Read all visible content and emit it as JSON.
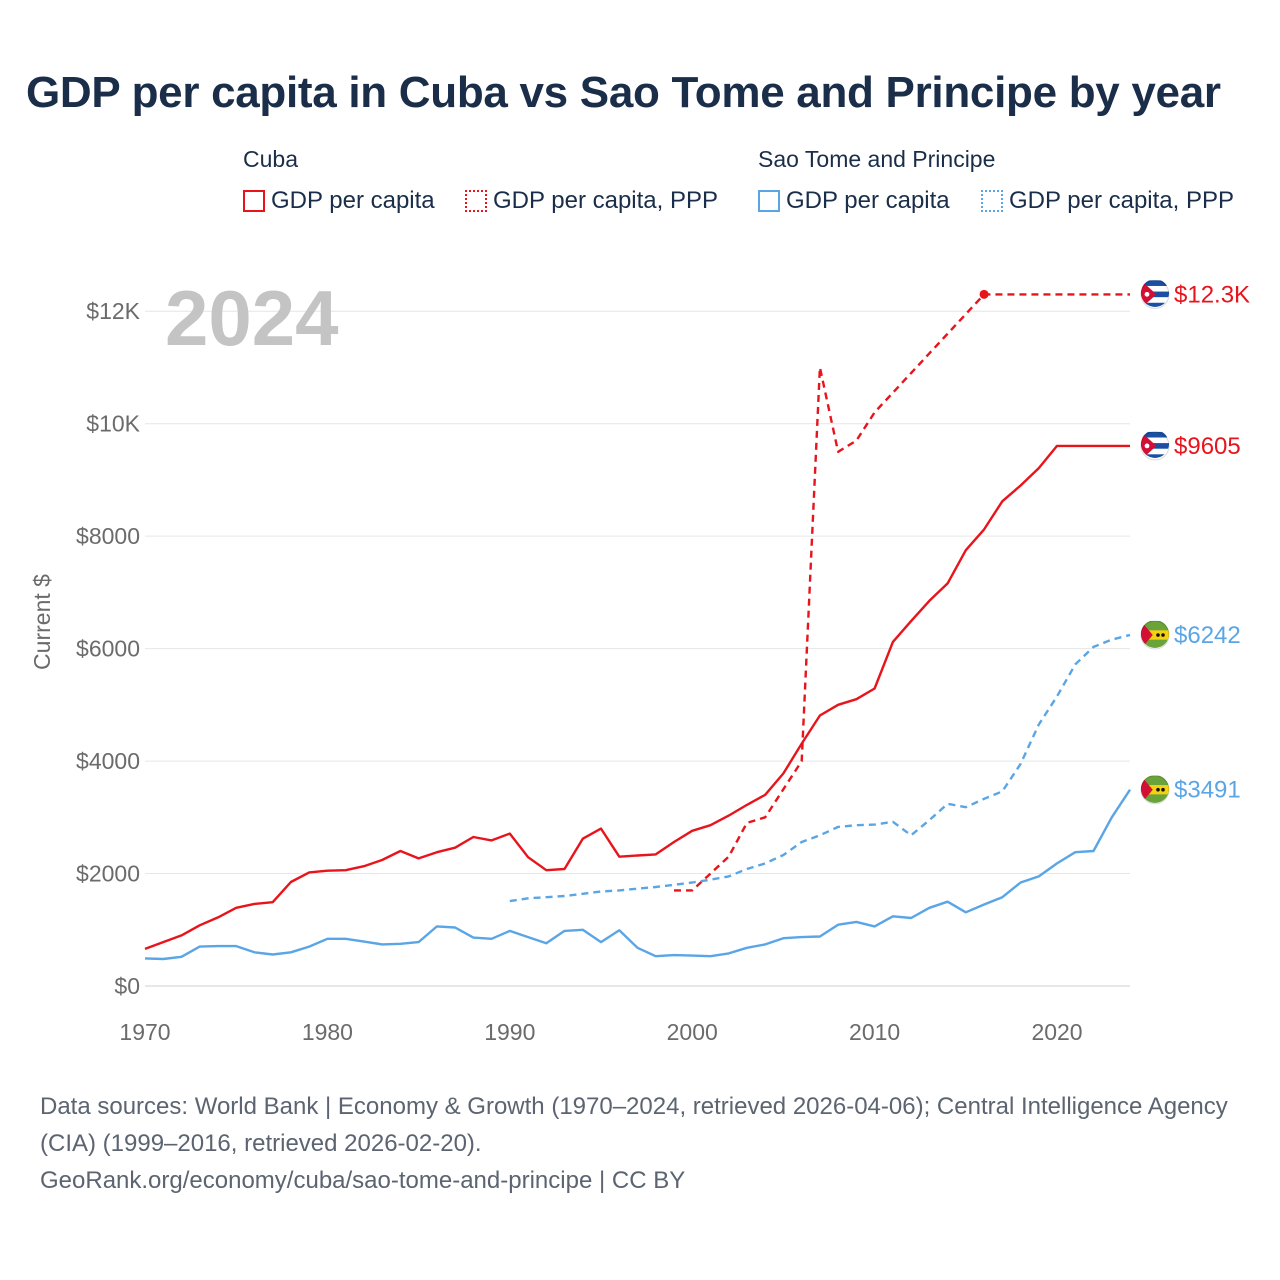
{
  "title": "GDP per capita in Cuba vs Sao Tome and Principe by year",
  "legend": {
    "groups": [
      {
        "name": "Cuba",
        "color": "#e8141c",
        "items": [
          {
            "label": "GDP per capita",
            "style": "solid"
          },
          {
            "label": "GDP per capita, PPP",
            "style": "dotted"
          }
        ]
      },
      {
        "name": "Sao Tome and Principe",
        "color": "#5aa5e6",
        "items": [
          {
            "label": "GDP per capita",
            "style": "solid"
          },
          {
            "label": "GDP per capita, PPP",
            "style": "dotted"
          }
        ]
      }
    ]
  },
  "year_label": "2024",
  "footer": {
    "sources": "Data sources: World Bank | Economy & Growth (1970–2024, retrieved 2026-04-06); Central Intelligence Agency (CIA) (1999–2016, retrieved 2026-02-20).",
    "link": "GeoRank.org/economy/cuba/sao-tome-and-principe | CC BY"
  },
  "chart_data": {
    "type": "line",
    "title": "GDP per capita in Cuba vs Sao Tome and Principe by year",
    "xlabel": "",
    "ylabel": "Current $",
    "xlim": [
      1970,
      2024
    ],
    "ylim": [
      0,
      13000
    ],
    "x_ticks": [
      1970,
      1980,
      1990,
      2000,
      2010,
      2020
    ],
    "x_tick_labels": [
      "1970",
      "1980",
      "1990",
      "2000",
      "2010",
      "2020"
    ],
    "y_ticks": [
      0,
      2000,
      4000,
      6000,
      8000,
      10000,
      12000
    ],
    "y_tick_labels": [
      "$0",
      "$2000",
      "$4000",
      "$6000",
      "$8000",
      "$10K",
      "$12K"
    ],
    "grid": true,
    "series": [
      {
        "name": "Cuba GDP per capita",
        "country": "Cuba",
        "color": "#e8141c",
        "dash": "solid",
        "end_label": "$9605",
        "flag": "cuba",
        "x": [
          1970,
          1971,
          1972,
          1973,
          1974,
          1975,
          1976,
          1977,
          1978,
          1979,
          1980,
          1981,
          1982,
          1983,
          1984,
          1985,
          1986,
          1987,
          1988,
          1989,
          1990,
          1991,
          1992,
          1993,
          1994,
          1995,
          1996,
          1997,
          1998,
          1999,
          2000,
          2001,
          2002,
          2003,
          2004,
          2005,
          2006,
          2007,
          2008,
          2009,
          2010,
          2011,
          2012,
          2013,
          2014,
          2015,
          2016,
          2017,
          2018,
          2019,
          2020,
          2024
        ],
        "y": [
          660,
          780,
          900,
          1080,
          1220,
          1390,
          1460,
          1490,
          1850,
          2020,
          2050,
          2060,
          2130,
          2240,
          2400,
          2270,
          2380,
          2460,
          2650,
          2590,
          2710,
          2290,
          2060,
          2080,
          2620,
          2800,
          2300,
          2320,
          2340,
          2560,
          2760,
          2860,
          3030,
          3220,
          3400,
          3780,
          4310,
          4810,
          5000,
          5100,
          5290,
          6120,
          6490,
          6850,
          7160,
          7750,
          8120,
          8620,
          8900,
          9210,
          9605,
          9605
        ]
      },
      {
        "name": "Cuba GDP per capita, PPP",
        "country": "Cuba",
        "color": "#e8141c",
        "dash": "dashed",
        "end_label": "$12.3K",
        "flag": "cuba",
        "x": [
          1999,
          2000,
          2001,
          2002,
          2003,
          2004,
          2005,
          2006,
          2007,
          2008,
          2009,
          2010,
          2016,
          2024
        ],
        "y": [
          1700,
          1700,
          2000,
          2300,
          2900,
          3000,
          3500,
          4000,
          11000,
          9500,
          9700,
          10200,
          12300,
          12300
        ]
      },
      {
        "name": "Sao Tome and Principe GDP per capita",
        "country": "Sao Tome and Principe",
        "color": "#5aa5e6",
        "dash": "solid",
        "end_label": "$3491",
        "flag": "stp",
        "x": [
          1970,
          1971,
          1972,
          1973,
          1974,
          1975,
          1976,
          1977,
          1978,
          1979,
          1980,
          1981,
          1982,
          1983,
          1984,
          1985,
          1986,
          1987,
          1988,
          1989,
          1990,
          1991,
          1992,
          1993,
          1994,
          1995,
          1996,
          1997,
          1998,
          1999,
          2000,
          2001,
          2002,
          2003,
          2004,
          2005,
          2006,
          2007,
          2008,
          2009,
          2010,
          2011,
          2012,
          2013,
          2014,
          2015,
          2016,
          2017,
          2018,
          2019,
          2020,
          2021,
          2022,
          2023,
          2024
        ],
        "y": [
          490,
          480,
          520,
          700,
          710,
          710,
          600,
          560,
          600,
          700,
          840,
          840,
          790,
          740,
          750,
          780,
          1060,
          1040,
          860,
          840,
          980,
          870,
          760,
          980,
          1000,
          780,
          990,
          680,
          530,
          550,
          540,
          530,
          580,
          680,
          740,
          850,
          870,
          880,
          1090,
          1140,
          1060,
          1240,
          1210,
          1390,
          1500,
          1310,
          1450,
          1580,
          1840,
          1950,
          2180,
          2380,
          2400,
          3000,
          3491
        ]
      },
      {
        "name": "Sao Tome and Principe GDP per capita, PPP",
        "country": "Sao Tome and Principe",
        "color": "#5aa5e6",
        "dash": "dashed",
        "end_label": "$6242",
        "flag": "stp",
        "x": [
          1990,
          1991,
          1992,
          1993,
          1994,
          1995,
          1996,
          1997,
          1998,
          1999,
          2000,
          2001,
          2002,
          2003,
          2004,
          2005,
          2006,
          2007,
          2008,
          2009,
          2010,
          2011,
          2012,
          2013,
          2014,
          2015,
          2016,
          2017,
          2018,
          2019,
          2020,
          2021,
          2022,
          2023,
          2024
        ],
        "y": [
          1510,
          1560,
          1580,
          1600,
          1640,
          1680,
          1700,
          1730,
          1760,
          1800,
          1840,
          1890,
          1950,
          2080,
          2180,
          2330,
          2560,
          2680,
          2830,
          2860,
          2870,
          2920,
          2680,
          2950,
          3240,
          3180,
          3330,
          3460,
          3950,
          4650,
          5150,
          5720,
          6030,
          6160,
          6242
        ]
      }
    ]
  }
}
